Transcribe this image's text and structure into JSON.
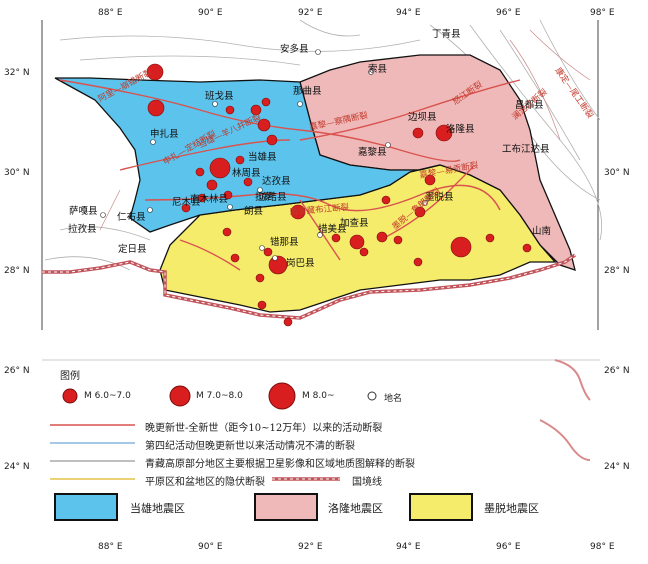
{
  "coords": {
    "top_lon": [
      "88° E",
      "90° E",
      "92° E",
      "94° E",
      "96° E",
      "98° E"
    ],
    "bottom_lon": [
      "88° E",
      "90° E",
      "92° E",
      "94° E",
      "96° E",
      "98° E"
    ],
    "left_lat": [
      "32° N",
      "30° N",
      "28° N",
      "26° N",
      "24° N"
    ],
    "right_lat": [
      "30° N",
      "28° N",
      "26° N",
      "24° N"
    ]
  },
  "towns": [
    "安多县",
    "索县",
    "丁青县",
    "昌都县",
    "边坝县",
    "洛隆县",
    "班戈县",
    "那曲县",
    "申扎县",
    "嘉黎县",
    "当雄县",
    "林周县",
    "南木林县",
    "尼木县",
    "拉萨",
    "达孜县",
    "仁布县",
    "工布江达县",
    "墨脱县",
    "萨嘎县",
    "拉孜县",
    "定日县",
    "岗巴县",
    "错那县",
    "措美县",
    "加查县",
    "朗县",
    "琼结县",
    "山南"
  ],
  "faults": [
    "阿里—崩错断裂",
    "嘉黎—察隅断裂",
    "嘉黎—易贡断裂",
    "雅鲁藏布江断裂",
    "申扎—定结断裂",
    "当雄—羊八井断裂",
    "康定—尾工断裂",
    "墨脱—鲁朗断裂",
    "怒江断裂",
    "澜沧江断裂"
  ],
  "legend": {
    "title": "图例",
    "mag1": "M 6.0~7.0",
    "mag2": "M 7.0~8.0",
    "mag3": "M 8.0~",
    "town": "地名",
    "fault1": "晚更新世-全新世（距今10~12万年）以来的活动断裂",
    "fault2": "第四纪活动但晚更新世以来活动情况不清的断裂",
    "fault3": "青藏高原部分地区主要根据卫星影像和区域地质图解释的断裂",
    "fault4": "平原区和盆地区的隐伏断裂",
    "border": "国境线",
    "zone1": "当雄地震区",
    "zone2": "洛隆地震区",
    "zone3": "墨脱地震区"
  },
  "colors": {
    "zone1": "#5bc3ec",
    "zone2": "#f0b9b9",
    "zone3": "#f5ec6b",
    "quake": "#d81e1e",
    "border": "#c2555b",
    "fault": "#d9534f"
  }
}
